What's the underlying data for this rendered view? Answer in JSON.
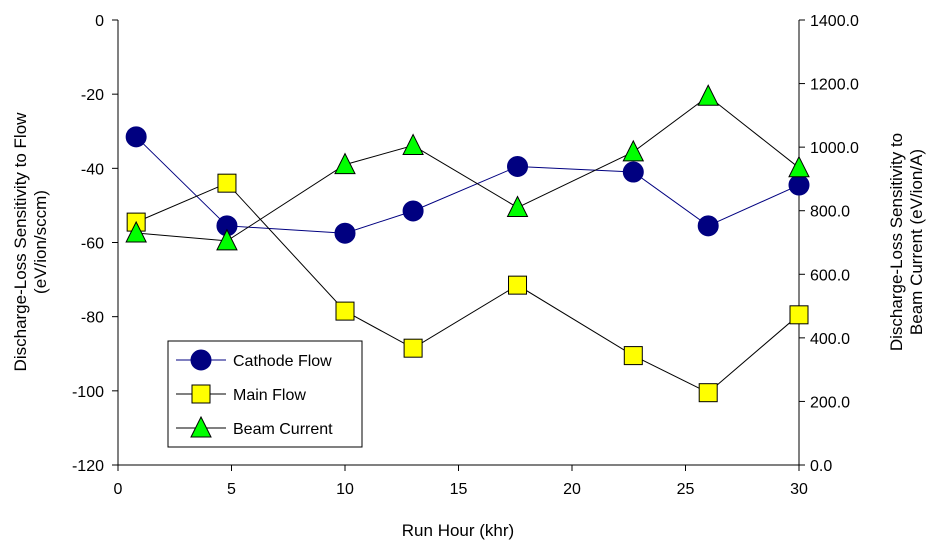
{
  "chart_data": {
    "type": "line",
    "title": "",
    "xlabel": "Run Hour (khr)",
    "ylabel_left": [
      "Discharge-Loss Sensitivity to Flow",
      "(eV/ion/sccm)"
    ],
    "ylabel_right": [
      "Discharge-Loss Sensitivity to",
      "Beam Current (eV/ion/A)"
    ],
    "xlim": [
      0,
      30
    ],
    "ylim_left": [
      -120,
      0
    ],
    "ylim_right": [
      0,
      1400
    ],
    "x_ticks": [
      "0",
      "5",
      "10",
      "15",
      "20",
      "25",
      "30"
    ],
    "y_left_ticks": [
      "0",
      "-20",
      "-40",
      "-60",
      "-80",
      "-100",
      "-120"
    ],
    "y_right_ticks": [
      "1400.0",
      "1200.0",
      "1000.0",
      "800.0",
      "600.0",
      "400.0",
      "200.0",
      "0.0"
    ],
    "grid": false,
    "legend_position": "lower-left",
    "series": [
      {
        "name": "Cathode Flow",
        "axis": "left",
        "marker": "circle",
        "line_color": "#000080",
        "marker_fill": "#000080",
        "x": [
          0.8,
          4.8,
          10.0,
          13.0,
          17.6,
          22.7,
          26.0,
          30.0
        ],
        "y": [
          -31.5,
          -55.5,
          -57.5,
          -51.5,
          -39.5,
          -41.0,
          -55.5,
          -44.5
        ]
      },
      {
        "name": "Main Flow",
        "axis": "left",
        "marker": "square",
        "line_color": "#000000",
        "marker_fill": "#ffff00",
        "x": [
          0.8,
          4.8,
          10.0,
          13.0,
          17.6,
          22.7,
          26.0,
          30.0
        ],
        "y": [
          -54.5,
          -44.0,
          -78.5,
          -88.5,
          -71.5,
          -90.5,
          -100.5,
          -79.5
        ]
      },
      {
        "name": "Beam Current",
        "axis": "right",
        "marker": "triangle",
        "line_color": "#000000",
        "marker_fill": "#00ff00",
        "x": [
          0.8,
          4.8,
          10.0,
          13.0,
          17.6,
          22.7,
          26.0,
          30.0
        ],
        "y": [
          730,
          705,
          945,
          1005,
          810,
          985,
          1160,
          935
        ]
      }
    ]
  }
}
